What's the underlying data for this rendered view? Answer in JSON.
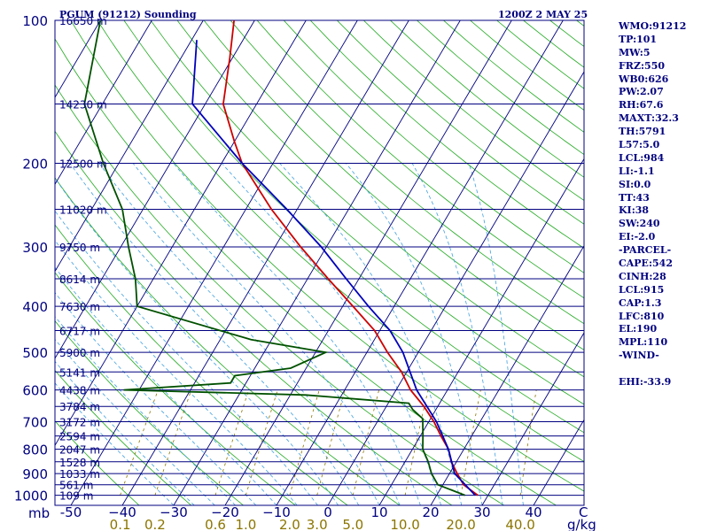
{
  "header": {
    "station": "PGUM (91212) Sounding",
    "time": "1200Z  2 MAY 25"
  },
  "indices": [
    "WMO:91212",
    "TP:101",
    "MW:5",
    "FRZ:550",
    "WB0:626",
    "PW:2.07",
    "RH:67.6",
    "MAXT:32.3",
    "TH:5791",
    "L57:5.0",
    "LCL:984",
    "LI:-1.1",
    "SI:0.0",
    "TT:43",
    "KI:38",
    "SW:240",
    "EI:-2.0",
    "-PARCEL-",
    "CAPE:542",
    "CINH:28",
    "LCL:915",
    "CAP:1.3",
    "LFC:810",
    "EL:190",
    "MPL:110",
    "-WIND-",
    "",
    "EHI:-33.9"
  ],
  "colors": {
    "isobar": "#000080",
    "isotherm": "#000080",
    "dry_adiabat": "#22aa22",
    "moist_adiabat": "#40a0e0",
    "mixing_ratio": "#8b7500",
    "temperature": "#cc0000",
    "dewpoint": "#005000",
    "parcel": "#0000bb"
  },
  "chart_data": {
    "type": "line",
    "title": "PGUM (91212) Sounding",
    "pressure_unit": "mb",
    "temperature_ticks": [
      -50,
      -40,
      -30,
      -20,
      -10,
      0,
      10,
      20,
      30,
      40
    ],
    "temperature_tick_labels": [
      "-50",
      "−40",
      "−30",
      "−20",
      "−10",
      "0",
      "10",
      "20",
      "30",
      "40"
    ],
    "temperature_end_label": "C",
    "pressure_levels": [
      100,
      200,
      300,
      400,
      500,
      600,
      700,
      800,
      900,
      1000
    ],
    "height_levels": [
      {
        "p": 100,
        "label": "16650 m"
      },
      {
        "p": 150,
        "label": "14230 m"
      },
      {
        "p": 200,
        "label": "12500 m"
      },
      {
        "p": 250,
        "label": "11020 m"
      },
      {
        "p": 300,
        "label": "9750 m"
      },
      {
        "p": 350,
        "label": "8614 m"
      },
      {
        "p": 400,
        "label": "7630 m"
      },
      {
        "p": 450,
        "label": "6717 m"
      },
      {
        "p": 500,
        "label": "5900 m"
      },
      {
        "p": 550,
        "label": "5141 m"
      },
      {
        "p": 600,
        "label": "4438 m"
      },
      {
        "p": 650,
        "label": "3784 m"
      },
      {
        "p": 700,
        "label": "3172 m"
      },
      {
        "p": 750,
        "label": "2594 m"
      },
      {
        "p": 800,
        "label": "2047 m"
      },
      {
        "p": 850,
        "label": "1528 m"
      },
      {
        "p": 900,
        "label": "1033 m"
      },
      {
        "p": 950,
        "label": "561 m"
      },
      {
        "p": 1000,
        "label": "109 m"
      }
    ],
    "mixing_ratio_labels": [
      "0.1",
      "0.2",
      "0.6",
      "1.0",
      "2.0",
      "3.0",
      "5.0",
      "10.0",
      "20.0",
      "40.0"
    ],
    "mixing_ratio_unit": "g/kg",
    "series": [
      {
        "name": "temperature",
        "points": [
          {
            "p": 100,
            "t": -74.0
          },
          {
            "p": 120,
            "t": -70.5
          },
          {
            "p": 150,
            "t": -66.5
          },
          {
            "p": 180,
            "t": -60.0
          },
          {
            "p": 200,
            "t": -56.0
          },
          {
            "p": 250,
            "t": -45.0
          },
          {
            "p": 300,
            "t": -35.0
          },
          {
            "p": 350,
            "t": -26.0
          },
          {
            "p": 400,
            "t": -18.0
          },
          {
            "p": 450,
            "t": -11.0
          },
          {
            "p": 500,
            "t": -6.0
          },
          {
            "p": 550,
            "t": -1.0
          },
          {
            "p": 600,
            "t": 2.8
          },
          {
            "p": 650,
            "t": 7.3
          },
          {
            "p": 700,
            "t": 11.0
          },
          {
            "p": 750,
            "t": 14.0
          },
          {
            "p": 800,
            "t": 17.0
          },
          {
            "p": 850,
            "t": 19.0
          },
          {
            "p": 900,
            "t": 21.5
          },
          {
            "p": 950,
            "t": 24.0
          },
          {
            "p": 1000,
            "t": 28.0
          }
        ]
      },
      {
        "name": "dewpoint",
        "points": [
          {
            "p": 100,
            "t": -100.0
          },
          {
            "p": 150,
            "t": -93.5
          },
          {
            "p": 200,
            "t": -83.0
          },
          {
            "p": 250,
            "t": -74.0
          },
          {
            "p": 300,
            "t": -68.5
          },
          {
            "p": 350,
            "t": -63.5
          },
          {
            "p": 400,
            "t": -60.0
          },
          {
            "p": 470,
            "t": -34.0
          },
          {
            "p": 500,
            "t": -18.0
          },
          {
            "p": 540,
            "t": -23.0
          },
          {
            "p": 560,
            "t": -33.0
          },
          {
            "p": 580,
            "t": -33.0
          },
          {
            "p": 600,
            "t": -53.0
          },
          {
            "p": 615,
            "t": -17.0
          },
          {
            "p": 640,
            "t": 4.0
          },
          {
            "p": 660,
            "t": 5.5
          },
          {
            "p": 690,
            "t": 8.5
          },
          {
            "p": 750,
            "t": 10.5
          },
          {
            "p": 800,
            "t": 12.0
          },
          {
            "p": 850,
            "t": 14.5
          },
          {
            "p": 900,
            "t": 16.5
          },
          {
            "p": 950,
            "t": 19.0
          },
          {
            "p": 1000,
            "t": 25.5
          }
        ]
      },
      {
        "name": "parcel",
        "points": [
          {
            "p": 110,
            "t": -79.0
          },
          {
            "p": 150,
            "t": -72.5
          },
          {
            "p": 200,
            "t": -56.0
          },
          {
            "p": 250,
            "t": -42.0
          },
          {
            "p": 300,
            "t": -31.0
          },
          {
            "p": 350,
            "t": -22.5
          },
          {
            "p": 400,
            "t": -15.0
          },
          {
            "p": 450,
            "t": -8.0
          },
          {
            "p": 500,
            "t": -3.0
          },
          {
            "p": 600,
            "t": 4.0
          },
          {
            "p": 700,
            "t": 11.5
          },
          {
            "p": 800,
            "t": 17.0
          },
          {
            "p": 900,
            "t": 21.0
          },
          {
            "p": 1000,
            "t": 27.5
          }
        ]
      }
    ]
  }
}
